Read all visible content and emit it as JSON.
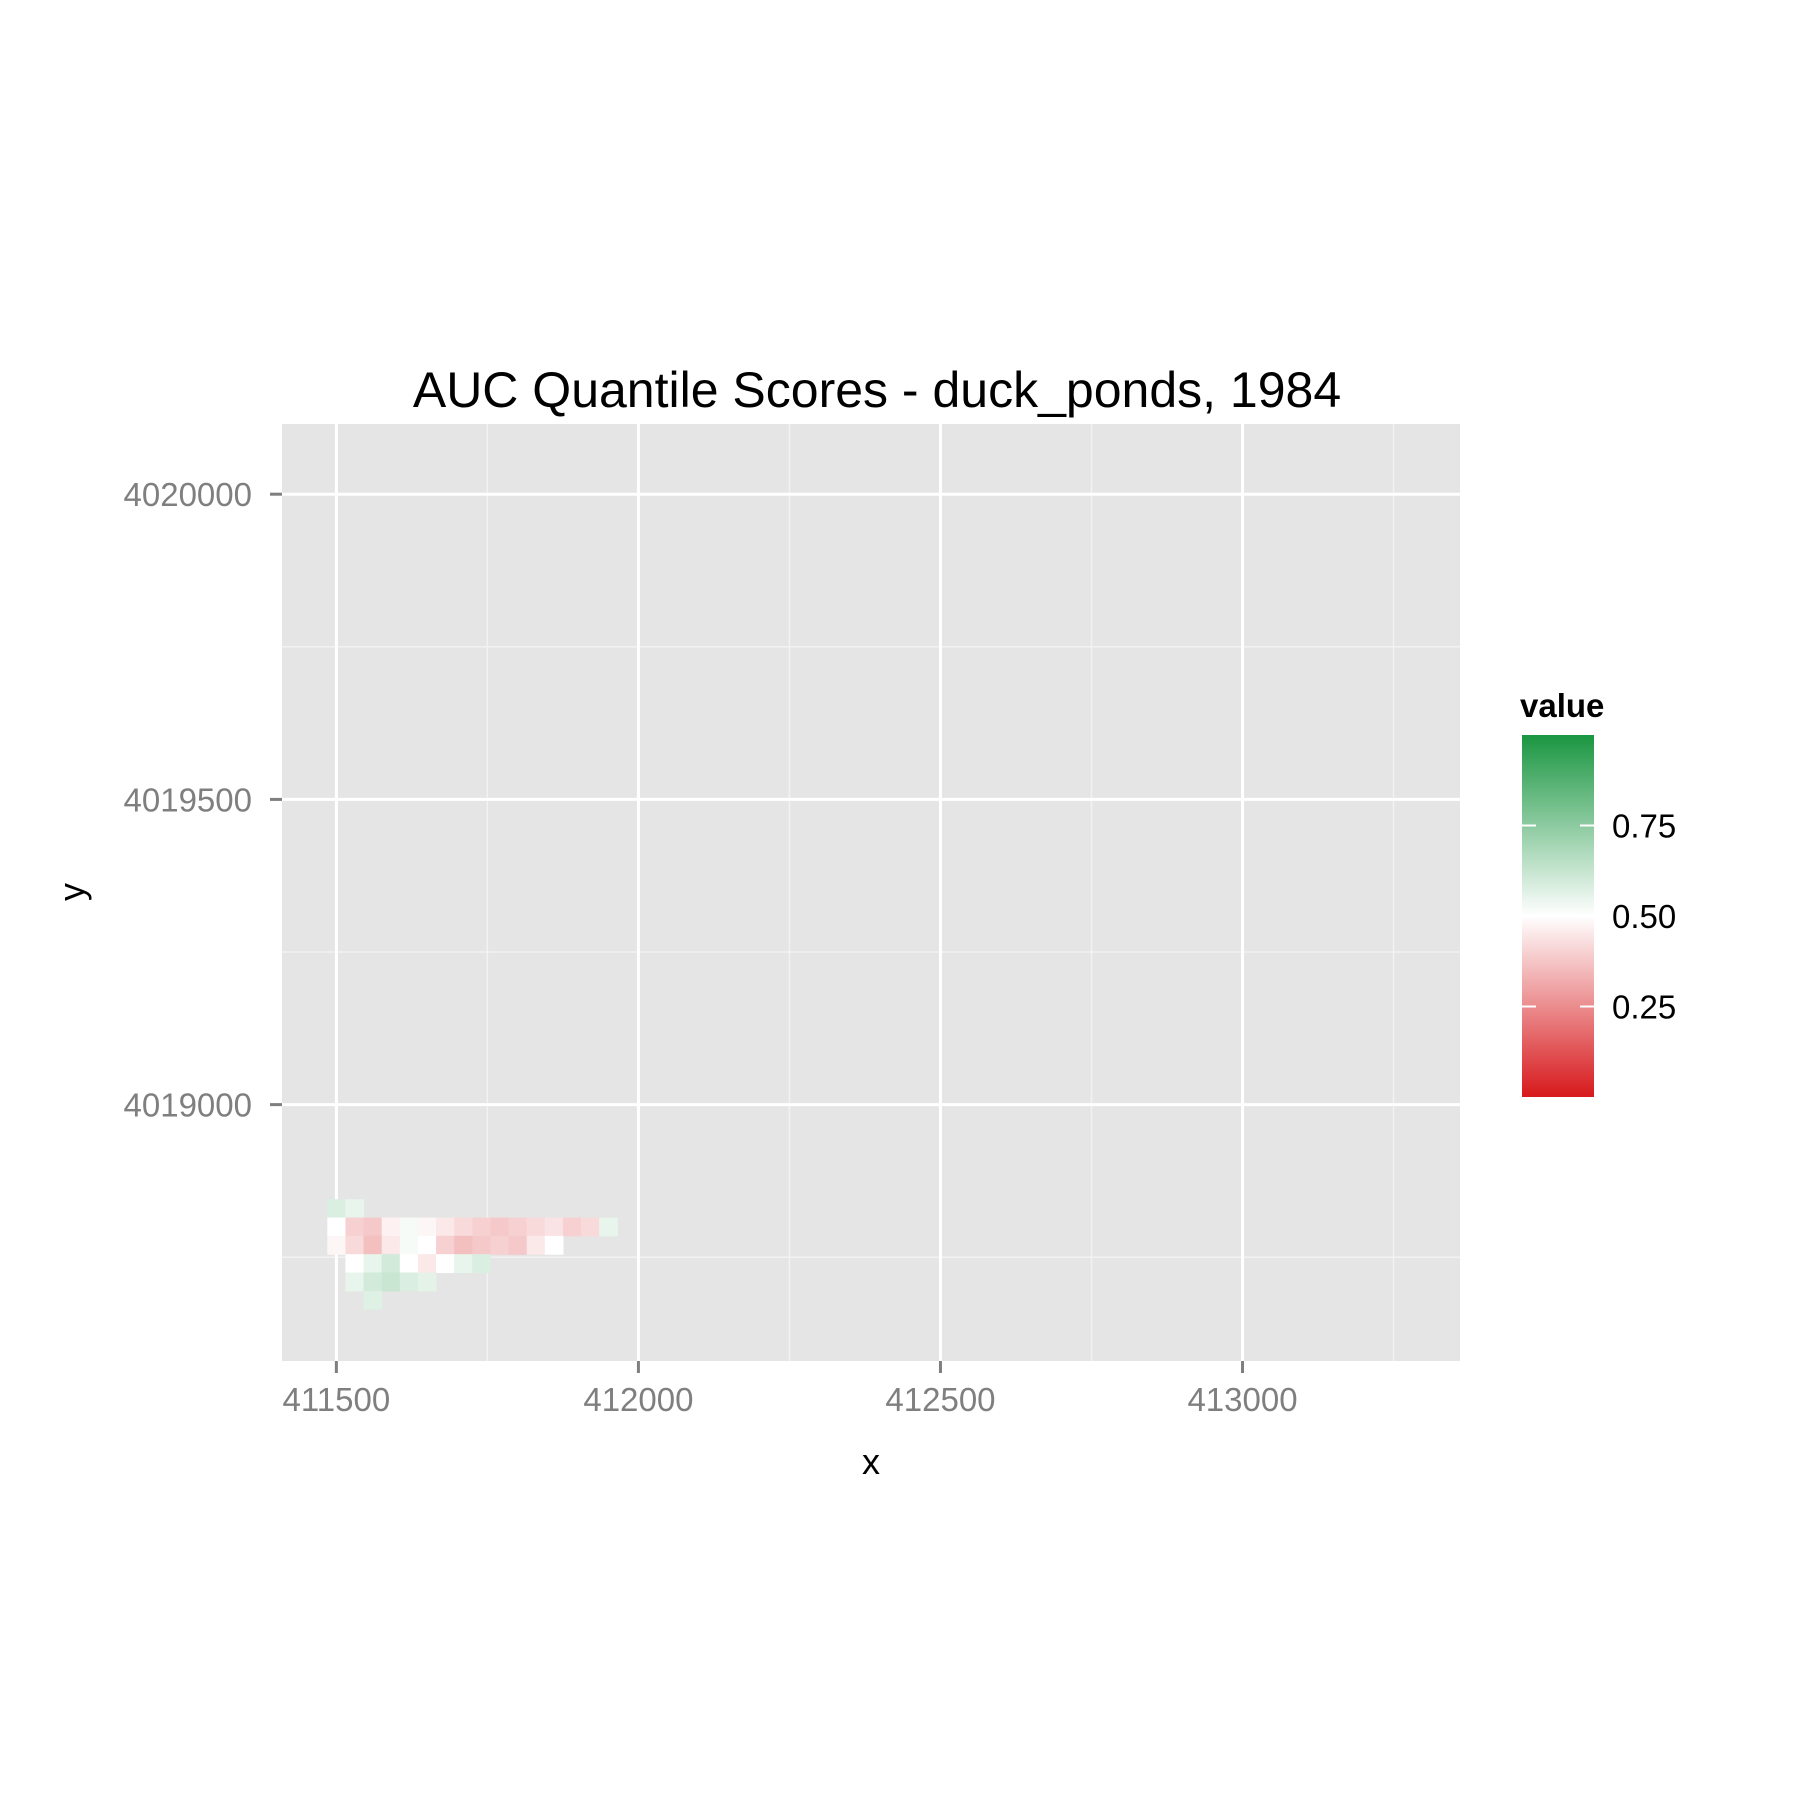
{
  "chart_data": {
    "type": "heatmap",
    "title": "AUC Quantile Scores - duck_ponds, 1984",
    "xlabel": "x",
    "ylabel": "y",
    "xlim": [
      411410,
      413360
    ],
    "ylim": [
      4018580,
      4020115
    ],
    "x_ticks": [
      411500,
      412000,
      412500,
      413000
    ],
    "x_tick_labels": [
      "411500",
      "412000",
      "412500",
      "413000"
    ],
    "y_ticks": [
      4019000,
      4019500,
      4020000
    ],
    "y_tick_labels": [
      "4019000",
      "4019500",
      "4020000"
    ],
    "x_minor_ticks": [
      411750,
      412250,
      412750,
      413250
    ],
    "y_minor_ticks": [
      4018750,
      4019250,
      4019750
    ],
    "grid": true,
    "panel_background": "#e5e5e5",
    "cell_size": 30,
    "colorscale": {
      "low": "#d7191c",
      "mid": "#ffffff",
      "high": "#1a9641",
      "midpoint": 0.5,
      "limits": [
        0.0,
        1.0
      ]
    },
    "legend": {
      "title": "value",
      "position": "right",
      "ticks": [
        0.25,
        0.5,
        0.75
      ],
      "tick_labels": [
        "0.25",
        "0.50",
        "0.75"
      ]
    },
    "cells": [
      {
        "x": 411500,
        "y": 4018830,
        "value": 0.58
      },
      {
        "x": 411530,
        "y": 4018830,
        "value": 0.55
      },
      {
        "x": 411500,
        "y": 4018800,
        "value": 0.5
      },
      {
        "x": 411530,
        "y": 4018800,
        "value": 0.4
      },
      {
        "x": 411560,
        "y": 4018800,
        "value": 0.38
      },
      {
        "x": 411590,
        "y": 4018800,
        "value": 0.47
      },
      {
        "x": 411620,
        "y": 4018800,
        "value": 0.52
      },
      {
        "x": 411650,
        "y": 4018800,
        "value": 0.48
      },
      {
        "x": 411680,
        "y": 4018800,
        "value": 0.45
      },
      {
        "x": 411710,
        "y": 4018800,
        "value": 0.42
      },
      {
        "x": 411740,
        "y": 4018800,
        "value": 0.4
      },
      {
        "x": 411770,
        "y": 4018800,
        "value": 0.38
      },
      {
        "x": 411800,
        "y": 4018800,
        "value": 0.4
      },
      {
        "x": 411830,
        "y": 4018800,
        "value": 0.42
      },
      {
        "x": 411860,
        "y": 4018800,
        "value": 0.44
      },
      {
        "x": 411890,
        "y": 4018800,
        "value": 0.4
      },
      {
        "x": 411920,
        "y": 4018800,
        "value": 0.42
      },
      {
        "x": 411950,
        "y": 4018800,
        "value": 0.55
      },
      {
        "x": 411500,
        "y": 4018770,
        "value": 0.48
      },
      {
        "x": 411530,
        "y": 4018770,
        "value": 0.42
      },
      {
        "x": 411560,
        "y": 4018770,
        "value": 0.36
      },
      {
        "x": 411590,
        "y": 4018770,
        "value": 0.45
      },
      {
        "x": 411620,
        "y": 4018770,
        "value": 0.52
      },
      {
        "x": 411650,
        "y": 4018770,
        "value": 0.5
      },
      {
        "x": 411680,
        "y": 4018770,
        "value": 0.4
      },
      {
        "x": 411710,
        "y": 4018770,
        "value": 0.36
      },
      {
        "x": 411740,
        "y": 4018770,
        "value": 0.38
      },
      {
        "x": 411770,
        "y": 4018770,
        "value": 0.4
      },
      {
        "x": 411800,
        "y": 4018770,
        "value": 0.38
      },
      {
        "x": 411830,
        "y": 4018770,
        "value": 0.45
      },
      {
        "x": 411860,
        "y": 4018770,
        "value": 0.5
      },
      {
        "x": 411530,
        "y": 4018740,
        "value": 0.5
      },
      {
        "x": 411560,
        "y": 4018740,
        "value": 0.55
      },
      {
        "x": 411590,
        "y": 4018740,
        "value": 0.6
      },
      {
        "x": 411620,
        "y": 4018740,
        "value": 0.5
      },
      {
        "x": 411650,
        "y": 4018740,
        "value": 0.45
      },
      {
        "x": 411680,
        "y": 4018740,
        "value": 0.5
      },
      {
        "x": 411710,
        "y": 4018740,
        "value": 0.55
      },
      {
        "x": 411740,
        "y": 4018740,
        "value": 0.58
      },
      {
        "x": 411530,
        "y": 4018710,
        "value": 0.55
      },
      {
        "x": 411560,
        "y": 4018710,
        "value": 0.6
      },
      {
        "x": 411590,
        "y": 4018710,
        "value": 0.62
      },
      {
        "x": 411620,
        "y": 4018710,
        "value": 0.58
      },
      {
        "x": 411650,
        "y": 4018710,
        "value": 0.56
      },
      {
        "x": 411560,
        "y": 4018680,
        "value": 0.57
      }
    ]
  }
}
